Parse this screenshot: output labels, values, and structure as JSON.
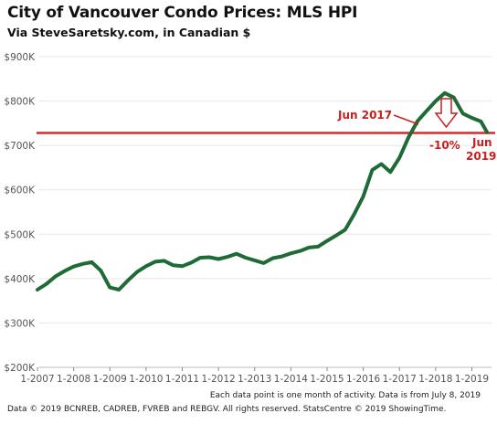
{
  "header": {
    "title": "City of Vancouver Condo Prices: MLS HPI",
    "subtitle": "Via SteveSaretsky.com, in Canadian $"
  },
  "footer": {
    "note_1": "Each data point is one month of activity. Data is from July 8, 2019",
    "note_2": "Data © 2019 BCNREB, CADREB, FVREB and REBGV. All rights reserved. StatsCentre © 2019 ShowingTime."
  },
  "colors": {
    "line": "#1f6b35",
    "reference": "#d42b2b",
    "annotation": "#c81e1e",
    "axis_text": "#555555",
    "grid": "#e6e6e6"
  },
  "annotations": {
    "jun2017": "Jun 2017",
    "drop": "-10%",
    "jun2019_line1": "Jun",
    "jun2019_line2": "2019"
  },
  "chart_data": {
    "type": "line",
    "title": "City of Vancouver Condo Prices: MLS HPI",
    "subtitle": "Via SteveSaretsky.com, in Canadian $",
    "xlabel": "",
    "ylabel": "",
    "ylim": [
      200000,
      900000
    ],
    "yticks": [
      200000,
      300000,
      400000,
      500000,
      600000,
      700000,
      800000,
      900000
    ],
    "ytick_labels": [
      "$200K",
      "$300K",
      "$400K",
      "$500K",
      "$600K",
      "$700K",
      "$800K",
      "$900K"
    ],
    "xticks": [
      "1-2007",
      "1-2008",
      "1-2009",
      "1-2010",
      "1-2011",
      "1-2012",
      "1-2013",
      "1-2014",
      "1-2015",
      "1-2016",
      "1-2017",
      "1-2018",
      "1-2019"
    ],
    "grid": true,
    "reference_line": {
      "value": 728000,
      "label": "Jun 2017"
    },
    "series": [
      {
        "color": "#1f6b35",
        "points": [
          [
            "2007-01",
            375000
          ],
          [
            "2007-04",
            388000
          ],
          [
            "2007-07",
            405000
          ],
          [
            "2007-10",
            417000
          ],
          [
            "2008-01",
            427000
          ],
          [
            "2008-04",
            433000
          ],
          [
            "2008-07",
            437000
          ],
          [
            "2008-10",
            418000
          ],
          [
            "2009-01",
            380000
          ],
          [
            "2009-04",
            375000
          ],
          [
            "2009-07",
            396000
          ],
          [
            "2009-10",
            415000
          ],
          [
            "2010-01",
            428000
          ],
          [
            "2010-04",
            438000
          ],
          [
            "2010-07",
            440000
          ],
          [
            "2010-10",
            430000
          ],
          [
            "2011-01",
            428000
          ],
          [
            "2011-04",
            436000
          ],
          [
            "2011-07",
            447000
          ],
          [
            "2011-10",
            448000
          ],
          [
            "2012-01",
            444000
          ],
          [
            "2012-04",
            449000
          ],
          [
            "2012-07",
            456000
          ],
          [
            "2012-10",
            447000
          ],
          [
            "2013-01",
            441000
          ],
          [
            "2013-04",
            435000
          ],
          [
            "2013-07",
            446000
          ],
          [
            "2013-10",
            450000
          ],
          [
            "2014-01",
            457000
          ],
          [
            "2014-04",
            462000
          ],
          [
            "2014-07",
            470000
          ],
          [
            "2014-10",
            472000
          ],
          [
            "2015-01",
            485000
          ],
          [
            "2015-04",
            497000
          ],
          [
            "2015-07",
            510000
          ],
          [
            "2015-10",
            545000
          ],
          [
            "2016-01",
            585000
          ],
          [
            "2016-04",
            645000
          ],
          [
            "2016-07",
            658000
          ],
          [
            "2016-10",
            640000
          ],
          [
            "2017-01",
            672000
          ],
          [
            "2017-04",
            718000
          ],
          [
            "2017-07",
            755000
          ],
          [
            "2017-10",
            778000
          ],
          [
            "2018-01",
            800000
          ],
          [
            "2018-04",
            818000
          ],
          [
            "2018-07",
            808000
          ],
          [
            "2018-10",
            772000
          ],
          [
            "2019-01",
            762000
          ],
          [
            "2019-04",
            754000
          ],
          [
            "2019-06",
            730000
          ]
        ]
      }
    ]
  }
}
